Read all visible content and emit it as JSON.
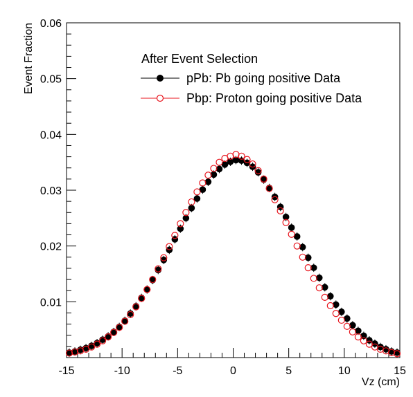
{
  "chart_data": {
    "type": "scatter",
    "title": "",
    "xlabel": "Vz (cm)",
    "ylabel": "Event Fraction",
    "xlim": [
      -15,
      15
    ],
    "ylim": [
      0,
      0.06
    ],
    "x_ticks": [
      "-15",
      "-10",
      "-5",
      "0",
      "5",
      "10",
      "15"
    ],
    "y_ticks": [
      "0.01",
      "0.02",
      "0.03",
      "0.04",
      "0.05",
      "0.06"
    ],
    "x_tick_values": [
      -15,
      -10,
      -5,
      0,
      5,
      10,
      15
    ],
    "y_tick_values": [
      0.01,
      0.02,
      0.03,
      0.04,
      0.05,
      0.06
    ],
    "grid": false,
    "legend": {
      "header": "After Event Selection",
      "placement": "top-left"
    },
    "x": [
      -14.75,
      -14.25,
      -13.75,
      -13.25,
      -12.75,
      -12.25,
      -11.75,
      -11.25,
      -10.75,
      -10.25,
      -9.75,
      -9.25,
      -8.75,
      -8.25,
      -7.75,
      -7.25,
      -6.75,
      -6.25,
      -5.75,
      -5.25,
      -4.75,
      -4.25,
      -3.75,
      -3.25,
      -2.75,
      -2.25,
      -1.75,
      -1.25,
      -0.75,
      -0.25,
      0.25,
      0.75,
      1.25,
      1.75,
      2.25,
      2.75,
      3.25,
      3.75,
      4.25,
      4.75,
      5.25,
      5.75,
      6.25,
      6.75,
      7.25,
      7.75,
      8.25,
      8.75,
      9.25,
      9.75,
      10.25,
      10.75,
      11.25,
      11.75,
      12.25,
      12.75,
      13.25,
      13.75,
      14.25,
      14.75
    ],
    "series": [
      {
        "name": "pPb: Pb going positive Data",
        "color": "#000000",
        "marker": "filled-circle",
        "values": [
          0.0009,
          0.0011,
          0.0014,
          0.0017,
          0.0021,
          0.0026,
          0.0032,
          0.0038,
          0.0046,
          0.0055,
          0.0066,
          0.0079,
          0.0092,
          0.0107,
          0.0122,
          0.0139,
          0.0157,
          0.0175,
          0.0193,
          0.0212,
          0.0231,
          0.025,
          0.0268,
          0.0285,
          0.0301,
          0.0315,
          0.0328,
          0.0338,
          0.0346,
          0.0351,
          0.0354,
          0.0353,
          0.0349,
          0.0342,
          0.0332,
          0.0319,
          0.0304,
          0.0288,
          0.027,
          0.0252,
          0.0233,
          0.0217,
          0.0198,
          0.0179,
          0.0161,
          0.0143,
          0.0126,
          0.011,
          0.0095,
          0.0082,
          0.007,
          0.0058,
          0.0048,
          0.0039,
          0.0031,
          0.0025,
          0.0019,
          0.0015,
          0.0011,
          0.0009
        ]
      },
      {
        "name": "Pbp: Proton going positive Data",
        "color": "#e8141c",
        "marker": "open-circle",
        "values": [
          0.0008,
          0.001,
          0.0012,
          0.0015,
          0.0019,
          0.0024,
          0.003,
          0.0037,
          0.0045,
          0.0054,
          0.0065,
          0.0077,
          0.0091,
          0.0106,
          0.0122,
          0.014,
          0.0159,
          0.0179,
          0.0199,
          0.0219,
          0.024,
          0.026,
          0.0279,
          0.0297,
          0.0313,
          0.0327,
          0.0339,
          0.035,
          0.0357,
          0.0361,
          0.0364,
          0.0361,
          0.0355,
          0.0347,
          0.0335,
          0.032,
          0.0303,
          0.0283,
          0.0263,
          0.0242,
          0.0221,
          0.02,
          0.018,
          0.0161,
          0.0142,
          0.0125,
          0.0108,
          0.0093,
          0.0079,
          0.0067,
          0.0056,
          0.0046,
          0.0037,
          0.003,
          0.0024,
          0.0019,
          0.0015,
          0.0012,
          0.0009,
          0.0007
        ]
      }
    ]
  }
}
